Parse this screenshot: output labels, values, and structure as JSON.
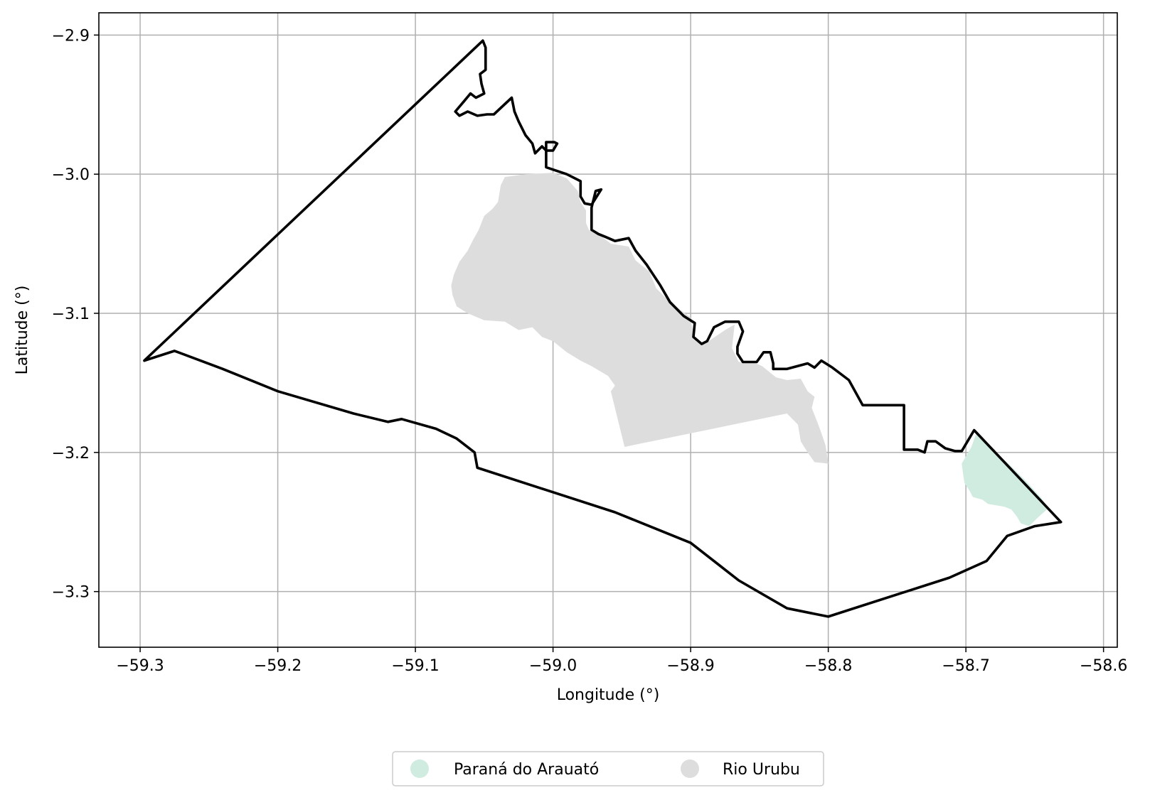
{
  "chart_data": {
    "type": "map",
    "xlabel": "Longitude (°)",
    "ylabel": "Latitude (°)",
    "xlim": [
      -59.33,
      -58.59
    ],
    "ylim": [
      -3.34,
      -2.884
    ],
    "grid": true,
    "legend_placement": "bottom-center",
    "xticks": [
      -59.3,
      -59.2,
      -59.1,
      -59.0,
      -58.9,
      -58.8,
      -58.7,
      -58.6
    ],
    "xtick_labels": [
      "−59.3",
      "−59.2",
      "−59.1",
      "−59.0",
      "−58.9",
      "−58.8",
      "−58.7",
      "−58.6"
    ],
    "yticks": [
      -2.9,
      -3.0,
      -3.1,
      -3.2,
      -3.3
    ],
    "ytick_labels": [
      "−2.9",
      "−3.0",
      "−3.1",
      "−3.2",
      "−3.3"
    ],
    "regions": [
      {
        "name": "Paraná do Arauató",
        "color": "#d0ece0",
        "coords": [
          [
            -58.692,
            -3.185
          ],
          [
            -58.68,
            -3.198
          ],
          [
            -58.667,
            -3.21
          ],
          [
            -58.655,
            -3.222
          ],
          [
            -58.645,
            -3.233
          ],
          [
            -58.64,
            -3.24
          ],
          [
            -58.648,
            -3.247
          ],
          [
            -58.654,
            -3.253
          ],
          [
            -58.66,
            -3.251
          ],
          [
            -58.663,
            -3.246
          ],
          [
            -58.667,
            -3.241
          ],
          [
            -58.672,
            -3.239
          ],
          [
            -58.678,
            -3.238
          ],
          [
            -58.684,
            -3.237
          ],
          [
            -58.688,
            -3.234
          ],
          [
            -58.695,
            -3.232
          ],
          [
            -58.697,
            -3.228
          ],
          [
            -58.701,
            -3.222
          ],
          [
            -58.702,
            -3.216
          ],
          [
            -58.703,
            -3.208
          ],
          [
            -58.696,
            -3.196
          ]
        ]
      },
      {
        "name": "Rio Urubu",
        "color": "#dddddd",
        "coords": [
          [
            -59.0,
            -2.999
          ],
          [
            -58.99,
            -3.003
          ],
          [
            -58.982,
            -3.012
          ],
          [
            -58.98,
            -3.02
          ],
          [
            -58.976,
            -3.026
          ],
          [
            -58.976,
            -3.035
          ],
          [
            -58.974,
            -3.04
          ],
          [
            -58.967,
            -3.043
          ],
          [
            -58.958,
            -3.05
          ],
          [
            -58.945,
            -3.052
          ],
          [
            -58.94,
            -3.062
          ],
          [
            -58.93,
            -3.07
          ],
          [
            -58.925,
            -3.082
          ],
          [
            -58.915,
            -3.092
          ],
          [
            -58.9,
            -3.103
          ],
          [
            -58.898,
            -3.117
          ],
          [
            -58.89,
            -3.122
          ],
          [
            -58.875,
            -3.112
          ],
          [
            -58.868,
            -3.108
          ],
          [
            -58.87,
            -3.125
          ],
          [
            -58.865,
            -3.135
          ],
          [
            -58.855,
            -3.135
          ],
          [
            -58.848,
            -3.138
          ],
          [
            -58.838,
            -3.146
          ],
          [
            -58.83,
            -3.148
          ],
          [
            -58.82,
            -3.147
          ],
          [
            -58.815,
            -3.156
          ],
          [
            -58.81,
            -3.16
          ],
          [
            -58.812,
            -3.168
          ],
          [
            -58.808,
            -3.178
          ],
          [
            -58.805,
            -3.186
          ],
          [
            -58.802,
            -3.195
          ],
          [
            -58.8,
            -3.208
          ],
          [
            -58.81,
            -3.207
          ],
          [
            -58.815,
            -3.2
          ],
          [
            -58.82,
            -3.192
          ],
          [
            -58.822,
            -3.18
          ],
          [
            -58.83,
            -3.172
          ],
          [
            -58.948,
            -3.196
          ],
          [
            -58.958,
            -3.156
          ],
          [
            -58.955,
            -3.152
          ],
          [
            -58.96,
            -3.145
          ],
          [
            -58.972,
            -3.138
          ],
          [
            -58.98,
            -3.134
          ],
          [
            -58.99,
            -3.128
          ],
          [
            -59.0,
            -3.12
          ],
          [
            -59.008,
            -3.117
          ],
          [
            -59.015,
            -3.11
          ],
          [
            -59.025,
            -3.112
          ],
          [
            -59.035,
            -3.106
          ],
          [
            -59.05,
            -3.105
          ],
          [
            -59.062,
            -3.1
          ],
          [
            -59.07,
            -3.095
          ],
          [
            -59.073,
            -3.087
          ],
          [
            -59.074,
            -3.08
          ],
          [
            -59.072,
            -3.072
          ],
          [
            -59.068,
            -3.063
          ],
          [
            -59.062,
            -3.055
          ],
          [
            -59.058,
            -3.047
          ],
          [
            -59.054,
            -3.04
          ],
          [
            -59.05,
            -3.03
          ],
          [
            -59.044,
            -3.025
          ],
          [
            -59.04,
            -3.02
          ],
          [
            -59.038,
            -3.008
          ],
          [
            -59.035,
            -3.002
          ],
          [
            -59.02,
            -3.0
          ]
        ]
      }
    ],
    "boundary": [
      [
        -59.051,
        -2.904
      ],
      [
        -59.049,
        -2.909
      ],
      [
        -59.049,
        -2.925
      ],
      [
        -59.053,
        -2.928
      ],
      [
        -59.052,
        -2.935
      ],
      [
        -59.05,
        -2.942
      ],
      [
        -59.056,
        -2.945
      ],
      [
        -59.06,
        -2.942
      ],
      [
        -59.065,
        -2.948
      ],
      [
        -59.071,
        -2.955
      ],
      [
        -59.068,
        -2.958
      ],
      [
        -59.062,
        -2.955
      ],
      [
        -59.055,
        -2.958
      ],
      [
        -59.048,
        -2.957
      ],
      [
        -59.043,
        -2.957
      ],
      [
        -59.03,
        -2.945
      ],
      [
        -59.028,
        -2.955
      ],
      [
        -59.025,
        -2.962
      ],
      [
        -59.02,
        -2.972
      ],
      [
        -59.015,
        -2.978
      ],
      [
        -59.013,
        -2.985
      ],
      [
        -59.008,
        -2.98
      ],
      [
        -59.005,
        -2.983
      ],
      [
        -59.0,
        -2.983
      ],
      [
        -58.997,
        -2.978
      ],
      [
        -58.999,
        -2.977
      ],
      [
        -59.005,
        -2.977
      ],
      [
        -59.005,
        -2.995
      ],
      [
        -58.99,
        -3.0
      ],
      [
        -58.98,
        -3.005
      ],
      [
        -58.98,
        -3.016
      ],
      [
        -58.977,
        -3.021
      ],
      [
        -58.972,
        -3.022
      ],
      [
        -58.965,
        -3.011
      ],
      [
        -58.969,
        -3.012
      ],
      [
        -58.972,
        -3.024
      ],
      [
        -58.972,
        -3.04
      ],
      [
        -58.967,
        -3.043
      ],
      [
        -58.962,
        -3.045
      ],
      [
        -58.955,
        -3.048
      ],
      [
        -58.945,
        -3.046
      ],
      [
        -58.94,
        -3.055
      ],
      [
        -58.932,
        -3.065
      ],
      [
        -58.922,
        -3.08
      ],
      [
        -58.915,
        -3.092
      ],
      [
        -58.905,
        -3.102
      ],
      [
        -58.897,
        -3.107
      ],
      [
        -58.898,
        -3.117
      ],
      [
        -58.892,
        -3.122
      ],
      [
        -58.888,
        -3.12
      ],
      [
        -58.883,
        -3.11
      ],
      [
        -58.875,
        -3.106
      ],
      [
        -58.865,
        -3.106
      ],
      [
        -58.862,
        -3.113
      ],
      [
        -58.866,
        -3.124
      ],
      [
        -58.866,
        -3.129
      ],
      [
        -58.862,
        -3.135
      ],
      [
        -58.852,
        -3.135
      ],
      [
        -58.847,
        -3.128
      ],
      [
        -58.842,
        -3.128
      ],
      [
        -58.84,
        -3.136
      ],
      [
        -58.84,
        -3.14
      ],
      [
        -58.83,
        -3.14
      ],
      [
        -58.815,
        -3.136
      ],
      [
        -58.81,
        -3.139
      ],
      [
        -58.805,
        -3.134
      ],
      [
        -58.797,
        -3.139
      ],
      [
        -58.785,
        -3.148
      ],
      [
        -58.775,
        -3.166
      ],
      [
        -58.745,
        -3.166
      ],
      [
        -58.745,
        -3.198
      ],
      [
        -58.735,
        -3.198
      ],
      [
        -58.73,
        -3.2
      ],
      [
        -58.728,
        -3.192
      ],
      [
        -58.722,
        -3.192
      ],
      [
        -58.715,
        -3.197
      ],
      [
        -58.708,
        -3.199
      ],
      [
        -58.703,
        -3.199
      ],
      [
        -58.694,
        -3.184
      ],
      [
        -58.631,
        -3.25
      ],
      [
        -58.65,
        -3.253
      ],
      [
        -58.67,
        -3.26
      ],
      [
        -58.685,
        -3.278
      ],
      [
        -58.712,
        -3.29
      ],
      [
        -58.8,
        -3.318
      ],
      [
        -58.83,
        -3.312
      ],
      [
        -58.865,
        -3.292
      ],
      [
        -58.9,
        -3.265
      ],
      [
        -58.955,
        -3.243
      ],
      [
        -59.055,
        -3.211
      ],
      [
        -59.057,
        -3.2
      ],
      [
        -59.07,
        -3.19
      ],
      [
        -59.085,
        -3.183
      ],
      [
        -59.11,
        -3.176
      ],
      [
        -59.12,
        -3.178
      ],
      [
        -59.145,
        -3.172
      ],
      [
        -59.2,
        -3.156
      ],
      [
        -59.24,
        -3.14
      ],
      [
        -59.275,
        -3.127
      ],
      [
        -59.297,
        -3.134
      ],
      [
        -59.051,
        -2.904
      ]
    ]
  }
}
